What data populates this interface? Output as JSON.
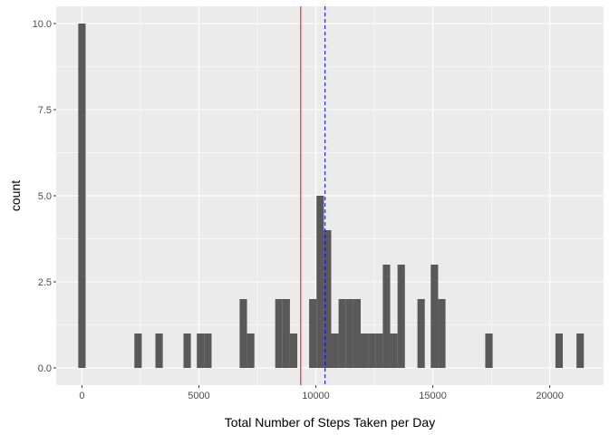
{
  "chart_data": {
    "type": "bar",
    "subtype": "histogram",
    "xlabel": "Total Number of Steps Taken per Day",
    "ylabel": "count",
    "xlim": [
      -1100,
      22300
    ],
    "ylim": [
      -0.5,
      10.5
    ],
    "x_ticks": [
      0,
      5000,
      10000,
      15000,
      20000
    ],
    "x_tick_labels": [
      "0",
      "5000",
      "10000",
      "15000",
      "20000"
    ],
    "y_ticks": [
      0,
      2.5,
      5,
      7.5,
      10
    ],
    "y_tick_labels": [
      "0.0",
      "2.5",
      "5.0",
      "7.5",
      "10.0"
    ],
    "binwidth": 315,
    "bins": [
      {
        "x": 0,
        "count": 10
      },
      {
        "x": 2400,
        "count": 1
      },
      {
        "x": 3300,
        "count": 1
      },
      {
        "x": 4500,
        "count": 1
      },
      {
        "x": 5070,
        "count": 1
      },
      {
        "x": 5385,
        "count": 1
      },
      {
        "x": 6900,
        "count": 2
      },
      {
        "x": 7215,
        "count": 1
      },
      {
        "x": 8420,
        "count": 2
      },
      {
        "x": 8735,
        "count": 2
      },
      {
        "x": 9050,
        "count": 1
      },
      {
        "x": 9870,
        "count": 2
      },
      {
        "x": 10185,
        "count": 5
      },
      {
        "x": 10500,
        "count": 4
      },
      {
        "x": 10815,
        "count": 1
      },
      {
        "x": 11130,
        "count": 2
      },
      {
        "x": 11445,
        "count": 2
      },
      {
        "x": 11760,
        "count": 2
      },
      {
        "x": 12075,
        "count": 1
      },
      {
        "x": 12390,
        "count": 1
      },
      {
        "x": 12705,
        "count": 1
      },
      {
        "x": 13020,
        "count": 3
      },
      {
        "x": 13335,
        "count": 1
      },
      {
        "x": 13650,
        "count": 3
      },
      {
        "x": 14500,
        "count": 2
      },
      {
        "x": 15070,
        "count": 3
      },
      {
        "x": 15385,
        "count": 2
      },
      {
        "x": 17400,
        "count": 1
      },
      {
        "x": 20400,
        "count": 1
      },
      {
        "x": 21300,
        "count": 1
      }
    ],
    "reference_lines": [
      {
        "x": 9354,
        "color": "#ff0000",
        "style": "solid"
      },
      {
        "x": 10395,
        "color": "#0000ff",
        "style": "dashed"
      }
    ],
    "grid": true,
    "colors": {
      "panel_background": "#ebebeb",
      "grid": "#ffffff",
      "bar_fill": "#595959"
    }
  }
}
